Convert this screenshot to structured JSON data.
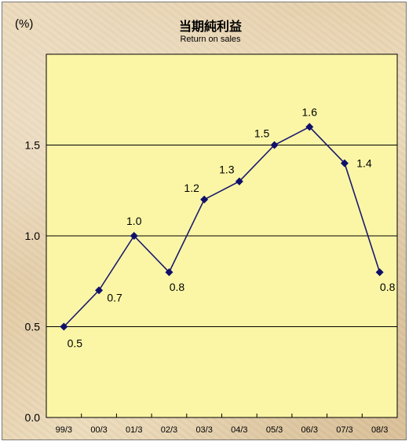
{
  "chart_data": {
    "type": "line",
    "title": "当期純利益",
    "subtitle": "Return on sales",
    "unit_label": "(%)",
    "categories": [
      "99/3",
      "00/3",
      "01/3",
      "02/3",
      "03/3",
      "04/3",
      "05/3",
      "06/3",
      "07/3",
      "08/3"
    ],
    "values": [
      0.5,
      0.7,
      1.0,
      0.8,
      1.2,
      1.3,
      1.5,
      1.6,
      1.4,
      0.8
    ],
    "data_labels": [
      "0.5",
      "0.7",
      "1.0",
      "0.8",
      "1.2",
      "1.3",
      "1.5",
      "1.6",
      "1.4",
      "0.8"
    ],
    "y_ticks": [
      "0.0",
      "0.5",
      "1.0",
      "1.5"
    ],
    "ylim": [
      0,
      2.0
    ],
    "grid": true,
    "colors": {
      "line": "#1a1a6e",
      "marker": "#10106a",
      "plot_background": "#fbf6a6"
    }
  }
}
